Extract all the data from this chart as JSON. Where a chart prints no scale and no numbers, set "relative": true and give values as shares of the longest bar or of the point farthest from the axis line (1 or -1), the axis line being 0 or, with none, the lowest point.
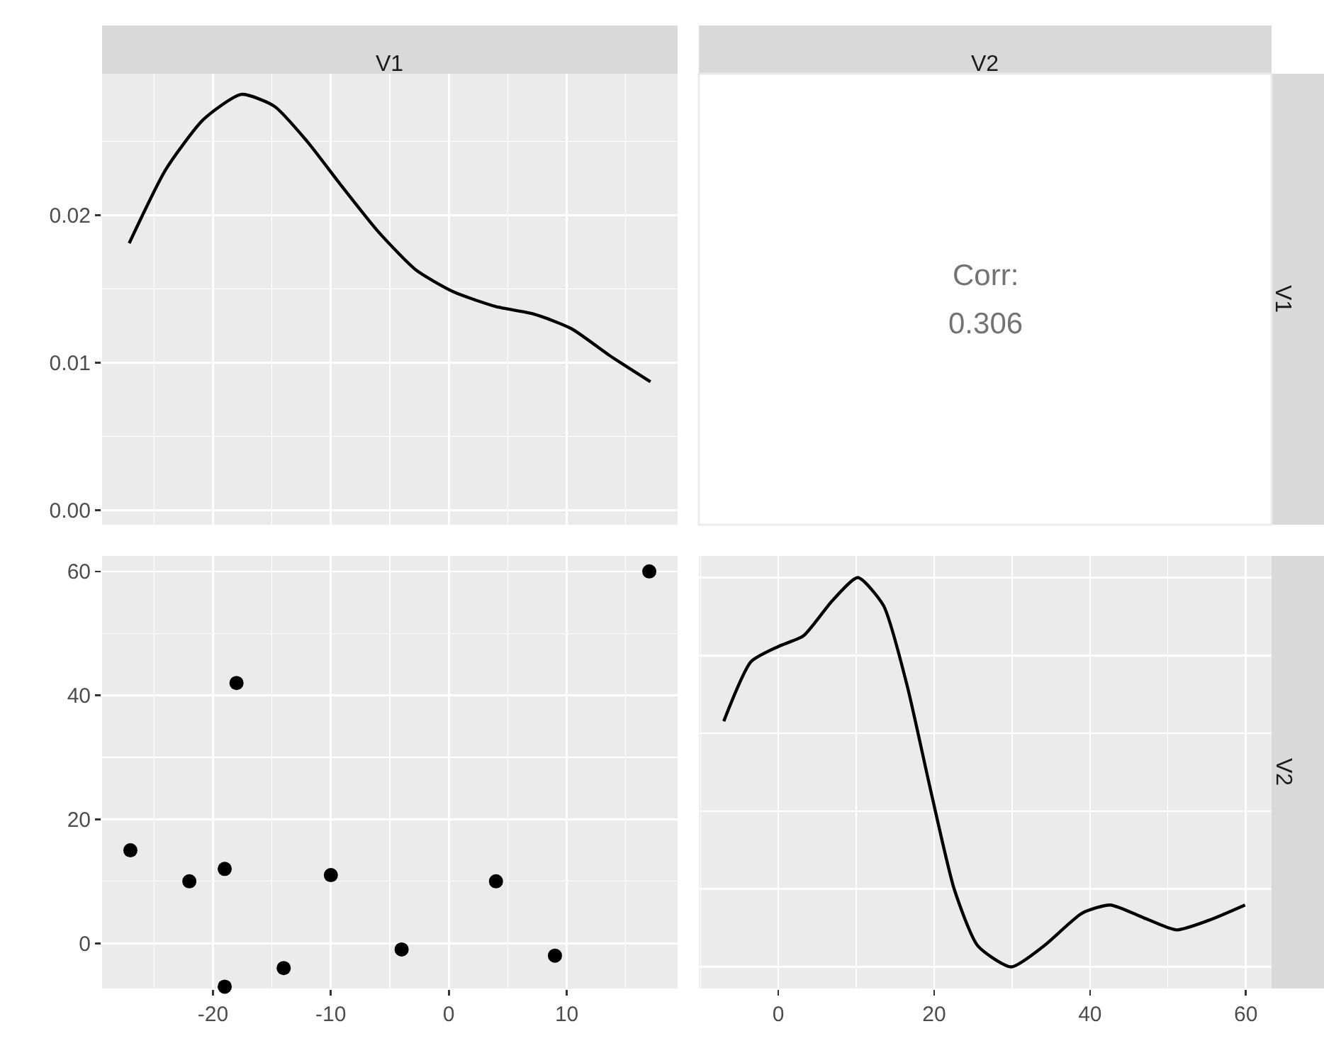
{
  "chart_data": [
    {
      "type": "line",
      "title": "V1",
      "tick_labels": "y",
      "grid": true,
      "marker": "none",
      "x": [
        -27.1,
        -24.0,
        -20.8,
        -17.6,
        -14.8,
        -12.0,
        -9.2,
        -6.0,
        -2.8,
        0.4,
        4.0,
        7.2,
        10.4,
        13.6,
        17.1
      ],
      "series": [
        {
          "color": "#000000",
          "values": [
            0.0181,
            0.0231,
            0.0265,
            0.0282,
            0.0274,
            0.025,
            0.0221,
            0.0189,
            0.0163,
            0.0148,
            0.0138,
            0.0133,
            0.0123,
            0.0105,
            0.0087
          ]
        }
      ],
      "xlim": [
        -29.4,
        19.4
      ],
      "xticks": [
        -20,
        -10,
        0,
        10
      ],
      "ylim": [
        -0.001,
        0.0296
      ],
      "yticks": [
        {
          "value": 0,
          "label": "0.00"
        },
        {
          "value": 0.01,
          "label": "0.01"
        },
        {
          "value": 0.02,
          "label": "0.02"
        }
      ]
    },
    {
      "type": "other",
      "title": "V2",
      "ylabel": "V1",
      "annotations": [
        "Corr:",
        "0.306"
      ]
    },
    {
      "type": "scatter",
      "grid": true,
      "marker": "circle",
      "x": [
        -27,
        -22,
        -19,
        -18,
        -19,
        -14,
        -10,
        -4,
        4,
        9,
        17
      ],
      "series": [
        {
          "color": "#000000",
          "values": [
            15,
            10,
            12,
            42,
            -7,
            -4,
            11,
            -1,
            10,
            -2,
            60
          ]
        }
      ],
      "xlim": [
        -29.4,
        19.4
      ],
      "xticks": [
        -20,
        -10,
        0,
        10
      ],
      "ylim": [
        -7.3,
        62.5
      ],
      "yticks": [
        0,
        20,
        40,
        60
      ]
    },
    {
      "type": "line",
      "ylabel": "V2",
      "relative": true,
      "grid": true,
      "marker": "none",
      "x": [
        -7.0,
        -3.5,
        0,
        3.2,
        6.9,
        10.2,
        13.5,
        16.5,
        19.6,
        22.6,
        25.6,
        29.9,
        34.1,
        39.0,
        42.6,
        46.9,
        51.1,
        55.3,
        59.9
      ],
      "series": [
        {
          "color": "#000000",
          "values": [
            0.631,
            0.784,
            0.823,
            0.85,
            0.94,
            1,
            0.928,
            0.725,
            0.449,
            0.198,
            0.054,
            0,
            0.054,
            0.138,
            0.159,
            0.126,
            0.095,
            0.12,
            0.159
          ]
        }
      ],
      "xlim": [
        -10.2,
        63.3
      ],
      "xticks": [
        0,
        20,
        40,
        60
      ]
    }
  ]
}
